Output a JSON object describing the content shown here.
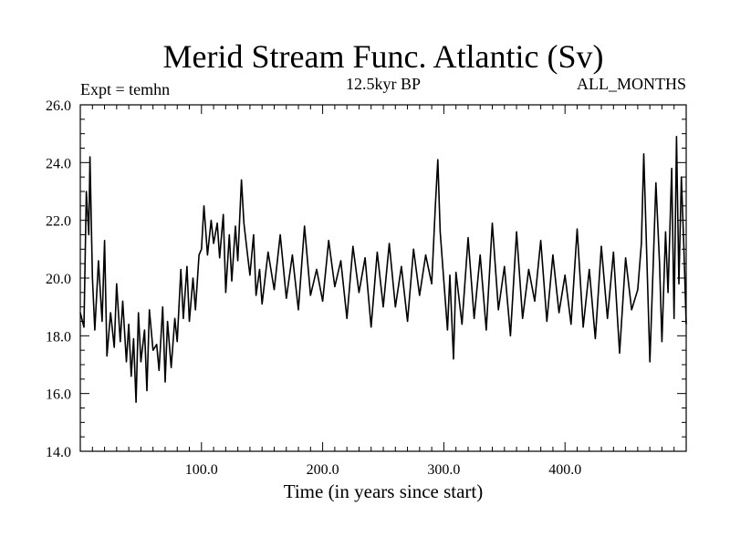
{
  "chart_data": {
    "type": "line",
    "title": "Merid Stream Func. Atlantic (Sv)",
    "subtitle_left": "Expt = temhn",
    "subtitle_center": "12.5kyr BP",
    "subtitle_right": "ALL_MONTHS",
    "xlabel": "Time (in years since start)",
    "ylabel": "",
    "xlim": [
      0,
      500
    ],
    "ylim": [
      14.0,
      26.0
    ],
    "x_ticks": [
      100,
      200,
      300,
      400
    ],
    "x_tick_labels": [
      "100.0",
      "200.0",
      "300.0",
      "400.0"
    ],
    "y_ticks": [
      14,
      16,
      18,
      20,
      22,
      24,
      26
    ],
    "y_tick_labels": [
      "14.0",
      "16.0",
      "18.0",
      "20.0",
      "22.0",
      "24.0",
      "26.0"
    ],
    "grid": false,
    "legend": "none",
    "series": [
      {
        "name": "Merid Stream Func. Atlantic",
        "color": "#000000",
        "x": [
          0,
          3,
          5,
          7,
          8,
          10,
          12,
          15,
          18,
          20,
          22,
          25,
          28,
          30,
          33,
          35,
          38,
          40,
          42,
          44,
          46,
          48,
          50,
          53,
          55,
          57,
          60,
          63,
          65,
          68,
          70,
          72,
          75,
          78,
          80,
          83,
          85,
          88,
          90,
          93,
          95,
          98,
          100,
          102,
          105,
          108,
          110,
          113,
          115,
          118,
          120,
          123,
          125,
          128,
          130,
          133,
          135,
          138,
          140,
          143,
          145,
          148,
          150,
          155,
          160,
          165,
          170,
          175,
          180,
          185,
          190,
          195,
          200,
          205,
          210,
          215,
          220,
          225,
          230,
          235,
          240,
          245,
          250,
          255,
          260,
          265,
          270,
          275,
          280,
          285,
          290,
          293,
          295,
          297,
          300,
          303,
          305,
          308,
          310,
          315,
          320,
          325,
          330,
          335,
          340,
          345,
          350,
          355,
          360,
          365,
          370,
          375,
          380,
          385,
          390,
          395,
          400,
          405,
          410,
          415,
          420,
          425,
          430,
          435,
          440,
          445,
          450,
          455,
          460,
          463,
          465,
          468,
          470,
          473,
          475,
          478,
          480,
          483,
          485,
          488,
          490,
          492,
          494,
          496,
          498,
          500
        ],
        "values": [
          18.8,
          18.3,
          23.0,
          21.5,
          24.2,
          20.0,
          18.2,
          20.6,
          18.5,
          21.3,
          17.3,
          18.8,
          17.6,
          19.8,
          17.8,
          19.2,
          17.1,
          18.4,
          16.6,
          17.9,
          15.7,
          18.8,
          17.1,
          18.2,
          16.1,
          18.9,
          17.5,
          17.7,
          16.8,
          19.0,
          16.4,
          18.5,
          16.9,
          18.6,
          17.8,
          20.3,
          18.6,
          20.4,
          18.5,
          20.0,
          18.9,
          20.8,
          21.0,
          22.5,
          20.8,
          22.0,
          21.2,
          21.9,
          20.7,
          22.2,
          19.5,
          21.5,
          19.9,
          21.8,
          20.6,
          23.4,
          21.9,
          20.8,
          20.1,
          21.5,
          19.4,
          20.3,
          19.1,
          20.9,
          19.6,
          21.5,
          19.3,
          20.8,
          18.9,
          21.8,
          19.4,
          20.3,
          19.2,
          21.3,
          19.7,
          20.6,
          18.6,
          21.1,
          19.5,
          20.7,
          18.3,
          20.9,
          19.0,
          21.2,
          19.0,
          20.4,
          18.5,
          21.0,
          19.4,
          20.8,
          19.8,
          22.5,
          24.1,
          21.6,
          19.9,
          18.2,
          20.1,
          17.2,
          20.2,
          18.4,
          21.4,
          18.6,
          20.8,
          18.2,
          21.9,
          18.9,
          20.4,
          18.0,
          21.6,
          18.6,
          20.3,
          19.2,
          21.3,
          18.5,
          20.8,
          18.8,
          20.1,
          18.4,
          21.7,
          18.3,
          20.3,
          17.9,
          21.1,
          18.6,
          20.9,
          17.4,
          20.7,
          18.9,
          19.6,
          21.2,
          24.3,
          20.0,
          17.1,
          20.7,
          23.3,
          20.5,
          17.8,
          21.6,
          19.5,
          23.8,
          18.6,
          24.9,
          19.8,
          23.5,
          21.2,
          18.4
        ]
      }
    ]
  }
}
